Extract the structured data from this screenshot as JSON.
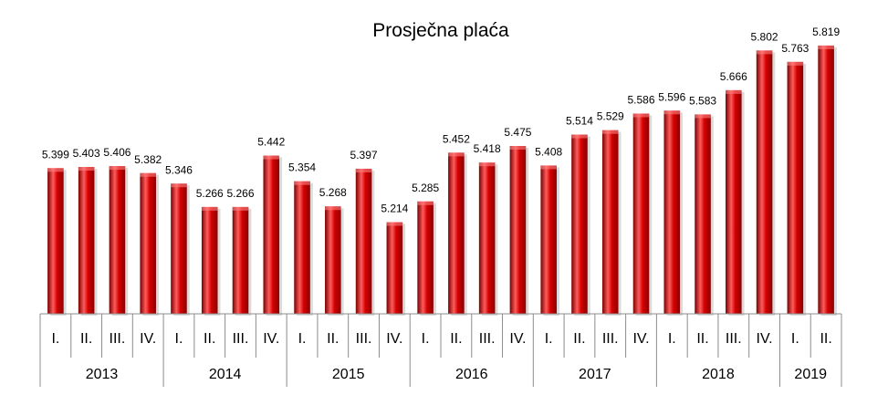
{
  "chart_data": {
    "type": "bar",
    "title": "Prosječna plaća",
    "xlabel": "",
    "ylabel": "",
    "colors": {
      "bar": "#cc0000",
      "bar_dark": "#7a0000",
      "bar_light": "#ff5c5c"
    },
    "groups": [
      {
        "year": "2013",
        "quarters": [
          "I.",
          "II.",
          "III.",
          "IV."
        ]
      },
      {
        "year": "2014",
        "quarters": [
          "I.",
          "II.",
          "III.",
          "IV."
        ]
      },
      {
        "year": "2015",
        "quarters": [
          "I.",
          "II.",
          "III.",
          "IV."
        ]
      },
      {
        "year": "2016",
        "quarters": [
          "I.",
          "II.",
          "III.",
          "IV."
        ]
      },
      {
        "year": "2017",
        "quarters": [
          "I.",
          "II.",
          "III.",
          "IV."
        ]
      },
      {
        "year": "2018",
        "quarters": [
          "I.",
          "II.",
          "III.",
          "IV."
        ]
      },
      {
        "year": "2019",
        "quarters": [
          "I.",
          "II."
        ]
      }
    ],
    "values": [
      5399,
      5403,
      5406,
      5382,
      5346,
      5266,
      5266,
      5442,
      5354,
      5268,
      5397,
      5214,
      5285,
      5452,
      5418,
      5475,
      5408,
      5514,
      5529,
      5586,
      5596,
      5583,
      5666,
      5802,
      5763,
      5819
    ],
    "labels": [
      "5.399",
      "5.403",
      "5.406",
      "5.382",
      "5.346",
      "5.266",
      "5.266",
      "5.442",
      "5.354",
      "5.268",
      "5.397",
      "5.214",
      "5.285",
      "5.452",
      "5.418",
      "5.475",
      "5.408",
      "5.514",
      "5.529",
      "5.586",
      "5.596",
      "5.583",
      "5.666",
      "5.802",
      "5.763",
      "5.819"
    ],
    "ylim": [
      4900,
      5850
    ],
    "grid": false,
    "legend": "none"
  }
}
